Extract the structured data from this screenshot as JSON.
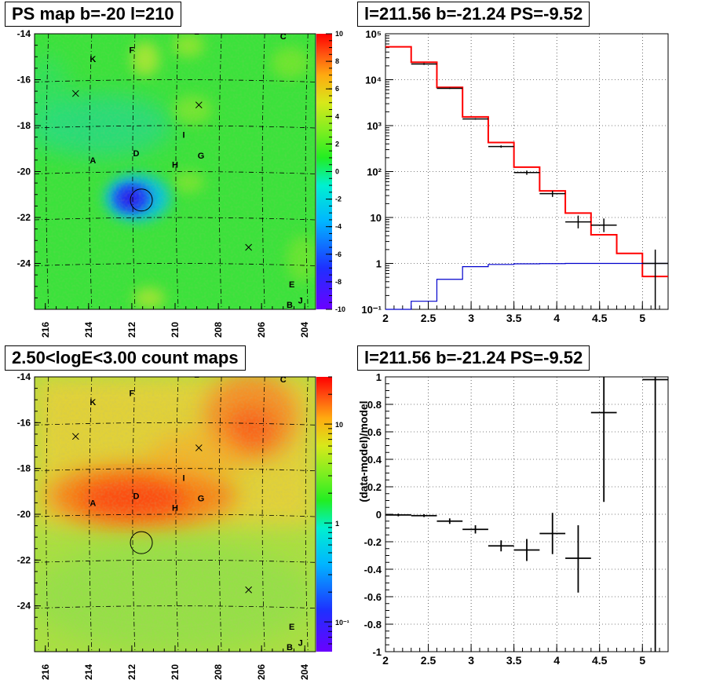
{
  "titles": {
    "ps_map": "PS map b=-20 l=210",
    "spectrum": "l=211.56 b=-21.24 PS=-9.52",
    "count_map": "2.50<logE<3.00 count maps",
    "residual": "l=211.56 b=-21.24 PS=-9.52"
  },
  "maps": {
    "x_ticks": [
      "216",
      "214",
      "212",
      "210",
      "208",
      "206",
      "204"
    ],
    "y_ticks": [
      "-14",
      "-16",
      "-18",
      "-20",
      "-22",
      "-24"
    ],
    "ps_colorbar_ticks": [
      "10",
      "8",
      "6",
      "4",
      "2",
      "0",
      "-2",
      "-4",
      "-6",
      "-8",
      "-10"
    ],
    "count_colorbar_ticks": [
      "10",
      "1",
      "10⁻¹"
    ],
    "source_labels": [
      "L",
      "C",
      "K",
      "F",
      "I",
      "D",
      "A",
      "H",
      "G",
      "E",
      "J",
      "B"
    ],
    "circle_center": {
      "l": 211.56,
      "b": -21.24
    }
  },
  "chart_data": [
    {
      "type": "heatmap",
      "title": "PS map b=-20 l=210",
      "xlim": [
        216.5,
        203.5
      ],
      "ylim": [
        -26,
        -14
      ],
      "colorbar_range": [
        -10,
        10
      ],
      "sources": [
        {
          "name": "L",
          "l": 209.0,
          "b": -13.9
        },
        {
          "name": "C",
          "l": 205.0,
          "b": -14.1
        },
        {
          "name": "K",
          "l": 213.8,
          "b": -15.1
        },
        {
          "name": "F",
          "l": 212.0,
          "b": -14.7
        },
        {
          "name": "I",
          "l": 209.6,
          "b": -18.4
        },
        {
          "name": "D",
          "l": 211.8,
          "b": -19.2
        },
        {
          "name": "A",
          "l": 213.8,
          "b": -19.5
        },
        {
          "name": "H",
          "l": 210.0,
          "b": -19.7
        },
        {
          "name": "G",
          "l": 208.8,
          "b": -19.3
        },
        {
          "name": "E",
          "l": 204.6,
          "b": -24.9
        },
        {
          "name": "J",
          "l": 204.2,
          "b": -25.6
        },
        {
          "name": "B",
          "l": 204.7,
          "b": -25.8
        }
      ],
      "crosses": [
        {
          "l": 214.6,
          "b": -16.6
        },
        {
          "l": 208.9,
          "b": -17.1
        },
        {
          "l": 206.6,
          "b": -23.3
        }
      ]
    },
    {
      "type": "line",
      "title": "l=211.56 b=-21.24 PS=-9.52",
      "xlim": [
        2,
        5.3
      ],
      "ylim": [
        0.1,
        100000
      ],
      "log_y": true,
      "x_ticks": [
        "2",
        "2.5",
        "3",
        "3.5",
        "4",
        "4.5",
        "5"
      ],
      "y_ticks": [
        "10⁻¹",
        "1",
        "10",
        "10²",
        "10³",
        "10⁴",
        "10⁵"
      ],
      "bin_edges": [
        2.0,
        2.3,
        2.6,
        2.9,
        3.2,
        3.5,
        3.8,
        4.1,
        4.4,
        4.7,
        5.0,
        5.3
      ],
      "series": [
        {
          "color": "#ff0000",
          "values": [
            52000,
            24000,
            6800,
            1550,
            430,
            125,
            38,
            12.5,
            4.2,
            1.65,
            0.52
          ]
        },
        {
          "color": "#0000cc",
          "values": [
            0.1,
            0.15,
            0.45,
            0.85,
            0.95,
            0.98,
            0.99,
            1.0,
            1.0,
            1.0,
            1.0
          ]
        }
      ],
      "data_points": [
        {
          "x": 2.45,
          "y": 22000,
          "xerr": 0.15,
          "ylo": 21000,
          "yhi": 23000
        },
        {
          "x": 2.75,
          "y": 6500,
          "xerr": 0.15,
          "ylo": 6300,
          "yhi": 6700
        },
        {
          "x": 3.05,
          "y": 1400,
          "xerr": 0.15,
          "ylo": 1350,
          "yhi": 1450
        },
        {
          "x": 3.35,
          "y": 350,
          "xerr": 0.15,
          "ylo": 330,
          "yhi": 370
        },
        {
          "x": 3.65,
          "y": 95,
          "xerr": 0.15,
          "ylo": 85,
          "yhi": 105
        },
        {
          "x": 3.95,
          "y": 33,
          "xerr": 0.15,
          "ylo": 28,
          "yhi": 38
        },
        {
          "x": 4.25,
          "y": 8,
          "xerr": 0.15,
          "ylo": 5.8,
          "yhi": 11
        },
        {
          "x": 4.55,
          "y": 6.8,
          "xerr": 0.15,
          "ylo": 4.8,
          "yhi": 9.5
        },
        {
          "x": 5.15,
          "y": 1,
          "xerr": 0.15,
          "ylo": 0.1,
          "yhi": 2
        }
      ]
    },
    {
      "type": "heatmap",
      "title": "2.50<logE<3.00 count maps",
      "xlim": [
        216.5,
        203.5
      ],
      "ylim": [
        -26,
        -14
      ],
      "colorbar_scale": "log",
      "colorbar_range": [
        0.05,
        30
      ]
    },
    {
      "type": "scatter",
      "title": "l=211.56 b=-21.24 PS=-9.52",
      "xlim": [
        2,
        5.3
      ],
      "ylim": [
        -1,
        1
      ],
      "ylabel": "(data-model)/model",
      "x_ticks": [
        "2",
        "2.5",
        "3",
        "3.5",
        "4",
        "4.5",
        "5"
      ],
      "y_ticks": [
        "1",
        "0.8",
        "0.6",
        "0.4",
        "0.2",
        "0",
        "-0.2",
        "-0.4",
        "-0.6",
        "-0.8",
        "-1"
      ],
      "data_points": [
        {
          "x": 2.15,
          "y": -0.005,
          "xerr": 0.15,
          "ylo": -0.015,
          "yhi": 0.005
        },
        {
          "x": 2.45,
          "y": -0.01,
          "xerr": 0.15,
          "ylo": -0.02,
          "yhi": 0.0
        },
        {
          "x": 2.75,
          "y": -0.05,
          "xerr": 0.15,
          "ylo": -0.07,
          "yhi": -0.03
        },
        {
          "x": 3.05,
          "y": -0.11,
          "xerr": 0.15,
          "ylo": -0.14,
          "yhi": -0.08
        },
        {
          "x": 3.35,
          "y": -0.23,
          "xerr": 0.15,
          "ylo": -0.27,
          "yhi": -0.19
        },
        {
          "x": 3.65,
          "y": -0.26,
          "xerr": 0.15,
          "ylo": -0.34,
          "yhi": -0.18
        },
        {
          "x": 3.95,
          "y": -0.14,
          "xerr": 0.15,
          "ylo": -0.29,
          "yhi": 0.01
        },
        {
          "x": 4.25,
          "y": -0.32,
          "xerr": 0.15,
          "ylo": -0.57,
          "yhi": -0.08
        },
        {
          "x": 4.55,
          "y": 0.74,
          "xerr": 0.15,
          "ylo": 0.09,
          "yhi": 1.0
        },
        {
          "x": 5.15,
          "y": 0.98,
          "xerr": 0.15,
          "ylo": -1.0,
          "yhi": 1.0
        }
      ]
    }
  ]
}
